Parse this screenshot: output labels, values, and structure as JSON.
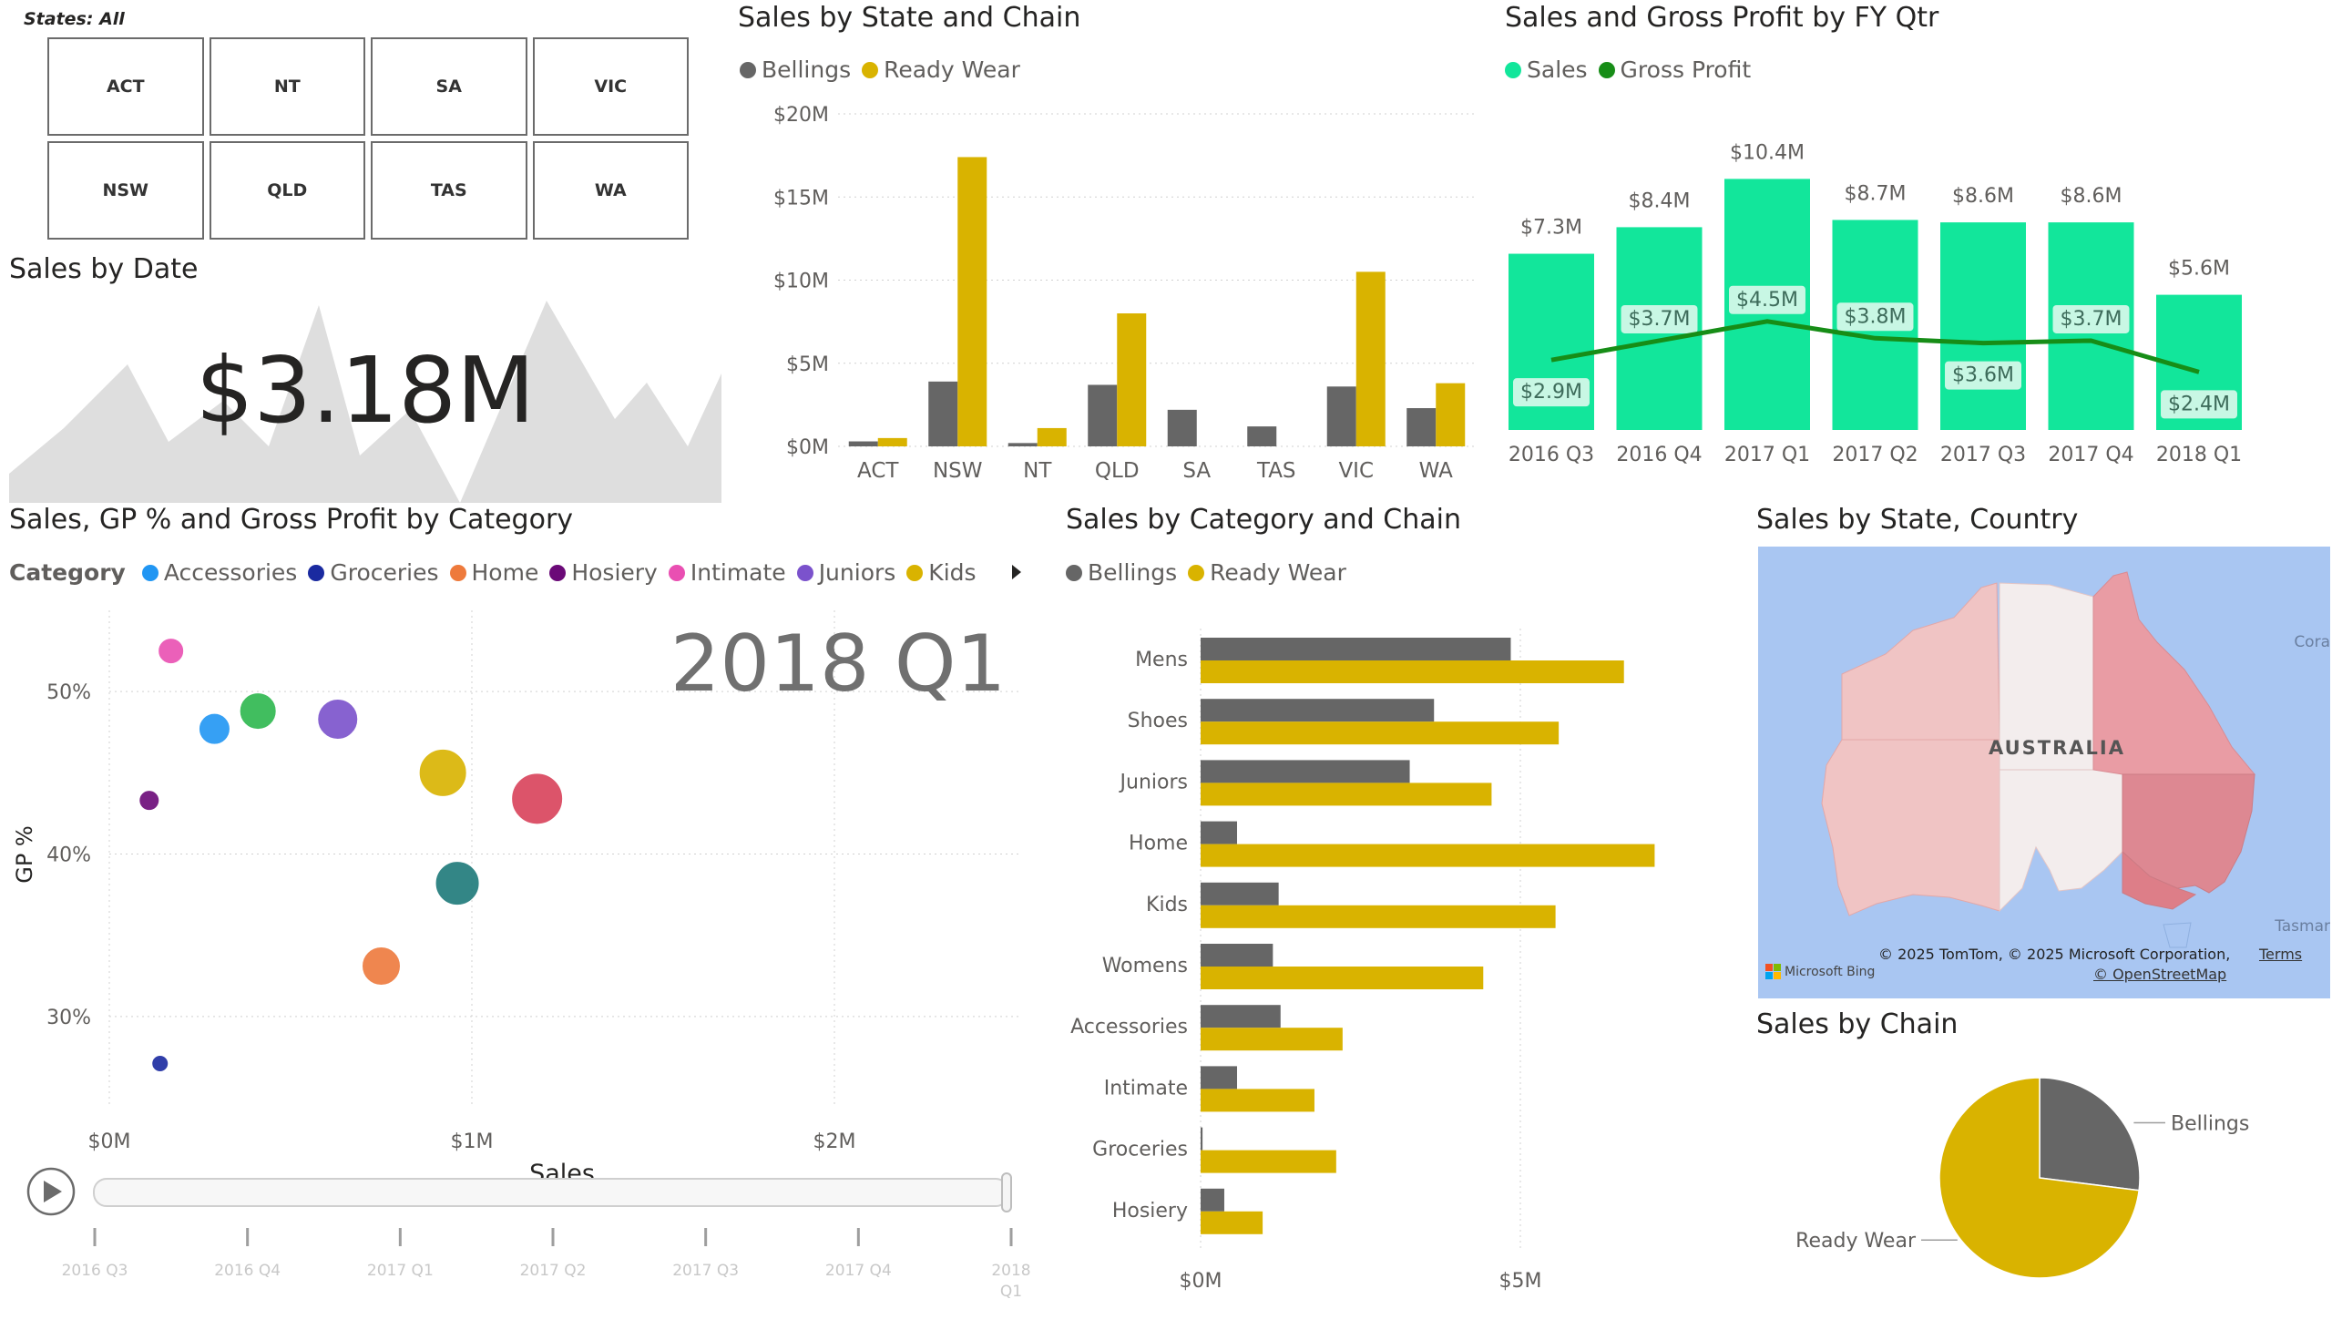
{
  "slicer": {
    "title": "States: All",
    "items": [
      "ACT",
      "NT",
      "SA",
      "VIC",
      "NSW",
      "QLD",
      "TAS",
      "WA"
    ]
  },
  "sales_by_date": {
    "title": "Sales by Date",
    "value": "$3.18M"
  },
  "colors": {
    "bellings": "#666666",
    "ready_wear": "#d9b300",
    "sales_green": "#12e69b",
    "gp_line": "#178d17"
  },
  "legends": {
    "chain": [
      "Bellings",
      "Ready Wear"
    ],
    "sales_gp": [
      "Sales",
      "Gross Profit"
    ],
    "category_label": "Category",
    "categories": [
      {
        "name": "Accessories",
        "color": "#2196f3"
      },
      {
        "name": "Groceries",
        "color": "#1a2aa0"
      },
      {
        "name": "Home",
        "color": "#ee7a3c"
      },
      {
        "name": "Hosiery",
        "color": "#6b0a78"
      },
      {
        "name": "Intimate",
        "color": "#e94fb2"
      },
      {
        "name": "Juniors",
        "color": "#7b52cc"
      },
      {
        "name": "Kids",
        "color": "#d9b300"
      }
    ]
  },
  "map": {
    "title": "Sales by State, Country",
    "country_label": "AUSTRALIA",
    "edge_label_right": "Cora",
    "edge_label_bottom": "Tasmar",
    "bing": "Microsoft Bing",
    "copyright": "© 2025 TomTom, © 2025 Microsoft Corporation,",
    "terms": "Terms",
    "osm": "© OpenStreetMap"
  },
  "chart_data": [
    {
      "id": "state-chain",
      "type": "bar",
      "title": "Sales by State and Chain",
      "categories": [
        "ACT",
        "NSW",
        "NT",
        "QLD",
        "SA",
        "TAS",
        "VIC",
        "WA"
      ],
      "series": [
        {
          "name": "Bellings",
          "values": [
            0.3,
            3.9,
            0.2,
            3.7,
            2.2,
            1.2,
            3.6,
            2.3
          ]
        },
        {
          "name": "Ready Wear",
          "values": [
            0.5,
            17.4,
            1.1,
            8.0,
            0.0,
            0.0,
            10.5,
            3.8
          ]
        }
      ],
      "ylim": [
        0,
        20
      ],
      "yticks": [
        "$0M",
        "$5M",
        "$10M",
        "$15M",
        "$20M"
      ],
      "grid": true
    },
    {
      "id": "fyqtr",
      "type": "bar",
      "title": "Sales and Gross Profit by FY Qtr",
      "categories": [
        "2016 Q3",
        "2016 Q4",
        "2017 Q1",
        "2017 Q2",
        "2017 Q3",
        "2017 Q4",
        "2018 Q1"
      ],
      "series": [
        {
          "name": "Sales",
          "values": [
            7.3,
            8.4,
            10.4,
            8.7,
            8.6,
            8.6,
            5.6
          ],
          "labels": [
            "$7.3M",
            "$8.4M",
            "$10.4M",
            "$8.7M",
            "$8.6M",
            "$8.6M",
            "$5.6M"
          ]
        },
        {
          "name": "Gross Profit",
          "values": [
            2.9,
            3.7,
            4.5,
            3.8,
            3.6,
            3.7,
            2.4
          ],
          "labels": [
            "$2.9M",
            "$3.7M",
            "$4.5M",
            "$3.8M",
            "$3.6M",
            "$3.7M",
            "$2.4M"
          ]
        }
      ]
    },
    {
      "id": "scatter",
      "type": "scatter",
      "title": "Sales, GP % and Gross Profit by Category",
      "play_label": "2018 Q1",
      "xlabel": "Sales",
      "ylabel": "GP %",
      "xlim": [
        0,
        2.5
      ],
      "ylim": [
        25,
        55
      ],
      "xticks": [
        {
          "v": 0,
          "label": "$0M"
        },
        {
          "v": 1,
          "label": "$1M"
        },
        {
          "v": 2,
          "label": "$2M"
        }
      ],
      "yticks": [
        {
          "v": 30,
          "label": "30%"
        },
        {
          "v": 40,
          "label": "40%"
        },
        {
          "v": 50,
          "label": "50%"
        }
      ],
      "points": [
        {
          "x": 0.17,
          "y": 52.5,
          "r": 14,
          "color": "#e94fb2"
        },
        {
          "x": 0.29,
          "y": 47.7,
          "r": 17,
          "color": "#2196f3"
        },
        {
          "x": 0.41,
          "y": 48.8,
          "r": 20,
          "color": "#2db84e"
        },
        {
          "x": 0.63,
          "y": 48.3,
          "r": 22,
          "color": "#7b52cc"
        },
        {
          "x": 0.92,
          "y": 45.0,
          "r": 26,
          "color": "#d9b300"
        },
        {
          "x": 1.18,
          "y": 43.4,
          "r": 28,
          "color": "#d9425a"
        },
        {
          "x": 0.11,
          "y": 43.3,
          "r": 11,
          "color": "#6b0a78"
        },
        {
          "x": 0.96,
          "y": 38.2,
          "r": 24,
          "color": "#1e7a7a"
        },
        {
          "x": 0.75,
          "y": 33.1,
          "r": 21,
          "color": "#ee7a3c"
        },
        {
          "x": 0.14,
          "y": 27.1,
          "r": 9,
          "color": "#1a2aa0"
        }
      ],
      "timeline": [
        "2016 Q3",
        "2016 Q4",
        "2017 Q1",
        "2017 Q2",
        "2017 Q3",
        "2017 Q4",
        "2018 Q1"
      ]
    },
    {
      "id": "category-chain",
      "type": "bar",
      "orientation": "horizontal",
      "title": "Sales by Category and Chain",
      "categories": [
        "Mens",
        "Shoes",
        "Juniors",
        "Home",
        "Kids",
        "Womens",
        "Accessories",
        "Intimate",
        "Groceries",
        "Hosiery"
      ],
      "series": [
        {
          "name": "Bellings",
          "values": [
            4.85,
            3.65,
            3.27,
            0.57,
            1.22,
            1.13,
            1.25,
            0.57,
            0.03,
            0.37
          ]
        },
        {
          "name": "Ready Wear",
          "values": [
            6.62,
            5.6,
            4.55,
            7.1,
            5.55,
            4.42,
            2.22,
            1.78,
            2.12,
            0.97
          ]
        }
      ],
      "xlim": [
        0,
        7.5
      ],
      "xticks": [
        {
          "v": 0,
          "label": "$0M"
        },
        {
          "v": 5,
          "label": "$5M"
        }
      ],
      "grid": true
    },
    {
      "id": "chain-pie",
      "type": "pie",
      "title": "Sales by Chain",
      "labels": [
        "Bellings",
        "Ready Wear"
      ],
      "values": [
        27,
        73
      ]
    }
  ]
}
